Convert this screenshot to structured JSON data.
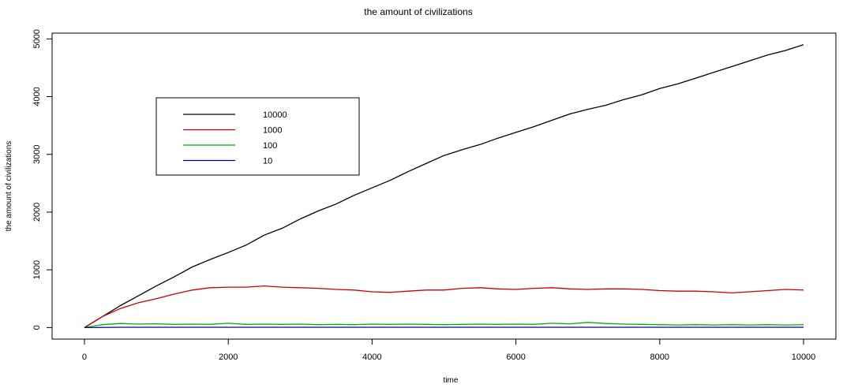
{
  "chart_data": {
    "type": "line",
    "title": "the amount of civilizations",
    "xlabel": "time",
    "ylabel": "the amount of civilizations",
    "xlim": [
      -450,
      10450
    ],
    "ylim": [
      -200,
      5100
    ],
    "xticks": [
      0,
      2000,
      4000,
      6000,
      8000,
      10000
    ],
    "xtick_labels": [
      "0",
      "2000",
      "4000",
      "6000",
      "8000",
      "10000"
    ],
    "yticks": [
      0,
      1000,
      2000,
      3000,
      4000,
      5000
    ],
    "ytick_labels": [
      "0",
      "1000",
      "2000",
      "3000",
      "4000",
      "5000"
    ],
    "grid": false,
    "legend_placement": "upper-left",
    "series": [
      {
        "name": "10000",
        "color": "#000000",
        "x": [
          0,
          250,
          500,
          750,
          1000,
          1250,
          1500,
          1750,
          2000,
          2250,
          2500,
          2750,
          3000,
          3250,
          3500,
          3750,
          4000,
          4250,
          4500,
          4750,
          5000,
          5250,
          5500,
          5750,
          6000,
          6250,
          6500,
          6750,
          7000,
          7250,
          7500,
          7750,
          8000,
          8250,
          8500,
          8750,
          9000,
          9250,
          9500,
          9750,
          10000
        ],
        "y": [
          0,
          190,
          380,
          550,
          720,
          880,
          1050,
          1180,
          1300,
          1430,
          1600,
          1720,
          1880,
          2020,
          2140,
          2290,
          2420,
          2550,
          2700,
          2840,
          2980,
          3080,
          3170,
          3280,
          3380,
          3480,
          3590,
          3700,
          3780,
          3850,
          3950,
          4030,
          4140,
          4220,
          4320,
          4420,
          4520,
          4620,
          4720,
          4800,
          4900
        ]
      },
      {
        "name": "1000",
        "color": "#cc0000",
        "x": [
          0,
          250,
          500,
          750,
          1000,
          1250,
          1500,
          1750,
          2000,
          2250,
          2500,
          2750,
          3000,
          3250,
          3500,
          3750,
          4000,
          4250,
          4500,
          4750,
          5000,
          5250,
          5500,
          5750,
          6000,
          6250,
          6500,
          6750,
          7000,
          7250,
          7500,
          7750,
          8000,
          8250,
          8500,
          8750,
          9000,
          9250,
          9500,
          9750,
          10000
        ],
        "y": [
          0,
          190,
          330,
          430,
          500,
          580,
          650,
          690,
          700,
          700,
          720,
          700,
          690,
          680,
          660,
          650,
          620,
          610,
          630,
          650,
          650,
          680,
          690,
          670,
          660,
          680,
          690,
          670,
          660,
          670,
          670,
          660,
          640,
          630,
          630,
          620,
          600,
          620,
          640,
          660,
          650
        ]
      },
      {
        "name": "100",
        "color": "#00b000",
        "x": [
          0,
          250,
          500,
          750,
          1000,
          1250,
          1500,
          1750,
          2000,
          2250,
          2500,
          2750,
          3000,
          3250,
          3500,
          3750,
          4000,
          4250,
          4500,
          4750,
          5000,
          5250,
          5500,
          5750,
          6000,
          6250,
          6500,
          6750,
          7000,
          7250,
          7500,
          7750,
          8000,
          8250,
          8500,
          8750,
          9000,
          9250,
          9500,
          9750,
          10000
        ],
        "y": [
          0,
          50,
          70,
          60,
          65,
          55,
          60,
          55,
          75,
          55,
          60,
          55,
          60,
          50,
          55,
          50,
          60,
          55,
          60,
          55,
          50,
          55,
          60,
          55,
          60,
          55,
          75,
          65,
          90,
          70,
          60,
          55,
          50,
          45,
          50,
          45,
          50,
          45,
          50,
          45,
          50
        ]
      },
      {
        "name": "10",
        "color": "#00008b",
        "x": [
          0,
          500,
          1000,
          2000,
          3000,
          4000,
          5000,
          6000,
          7000,
          8000,
          9000,
          10000
        ],
        "y": [
          0,
          5,
          5,
          5,
          5,
          5,
          5,
          5,
          5,
          5,
          5,
          5
        ]
      }
    ]
  }
}
